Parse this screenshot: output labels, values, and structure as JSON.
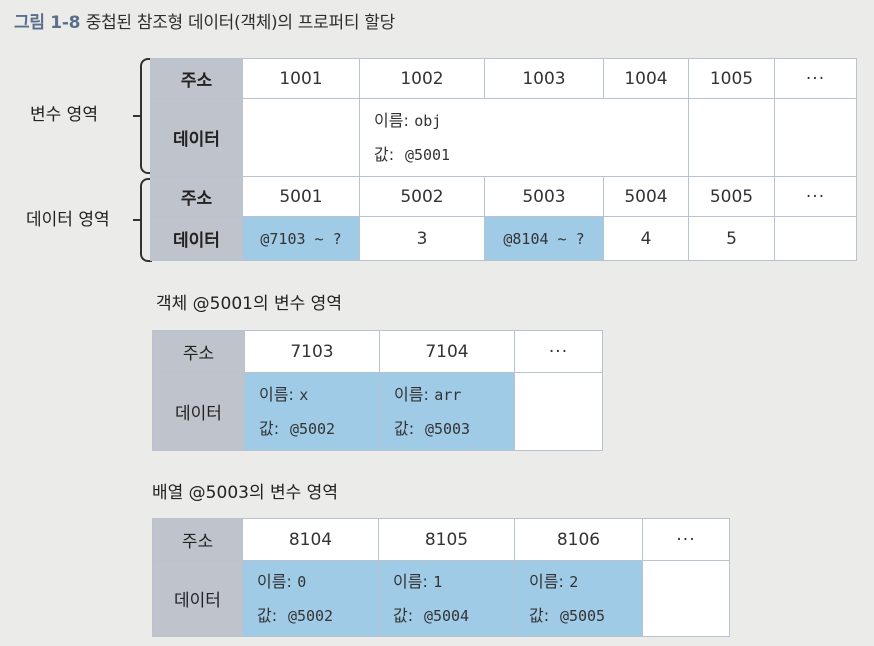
{
  "figure": {
    "number": "그림 1-8",
    "title": "중첩된 참조형 데이터(객체)의 프로퍼티 할당"
  },
  "labels": {
    "address": "주소",
    "data": "데이터",
    "name_key": "이름:",
    "value_key": "값:"
  },
  "top": {
    "variable_area": "변수 영역",
    "data_area": "데이터 영역",
    "var_addresses": [
      "1001",
      "1002",
      "1003",
      "1004",
      "1005",
      "···"
    ],
    "var_entry": {
      "name": "obj",
      "value": "@5001"
    },
    "data_addresses": [
      "5001",
      "5002",
      "5003",
      "5004",
      "5005",
      "···"
    ],
    "data_values": [
      "@7103 ~ ?",
      "3",
      "@8104 ~ ?",
      "4",
      "5",
      ""
    ]
  },
  "obj_section": {
    "title": "객체 @5001의 변수 영역",
    "addresses": [
      "7103",
      "7104",
      "···"
    ],
    "entries": [
      {
        "name": "x",
        "value": "@5002"
      },
      {
        "name": "arr",
        "value": "@5003"
      }
    ]
  },
  "arr_section": {
    "title": "배열 @5003의 변수 영역",
    "addresses": [
      "8104",
      "8105",
      "8106",
      "···"
    ],
    "entries": [
      {
        "name": "0",
        "value": "@5002"
      },
      {
        "name": "1",
        "value": "@5004"
      },
      {
        "name": "2",
        "value": "@5005"
      }
    ]
  }
}
